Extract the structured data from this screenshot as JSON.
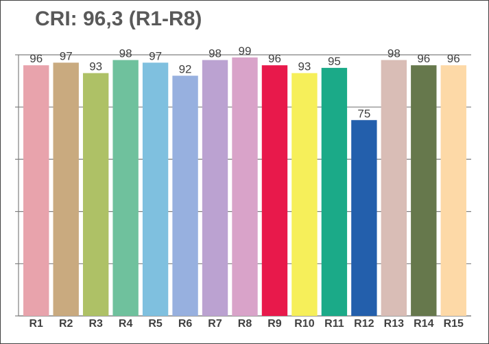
{
  "chart_data": {
    "type": "bar",
    "title": "CRI: 96,3 (R1-R8)",
    "categories": [
      "R1",
      "R2",
      "R3",
      "R4",
      "R5",
      "R6",
      "R7",
      "R8",
      "R9",
      "R10",
      "R11",
      "R12",
      "R13",
      "R14",
      "R15"
    ],
    "values": [
      96,
      97,
      93,
      98,
      97,
      92,
      98,
      99,
      96,
      93,
      95,
      75,
      98,
      96,
      96
    ],
    "colors": [
      "#E8A3AC",
      "#C9AA7F",
      "#AEC166",
      "#6FC19D",
      "#7FC0DF",
      "#97B0DF",
      "#BBA2D1",
      "#D9A3C9",
      "#E8194B",
      "#F6EF5A",
      "#1BAA88",
      "#235FAC",
      "#D9BDB6",
      "#66784C",
      "#FDD9A7"
    ],
    "ylim": [
      0,
      100
    ],
    "gridlines": true,
    "data_labels": true
  }
}
